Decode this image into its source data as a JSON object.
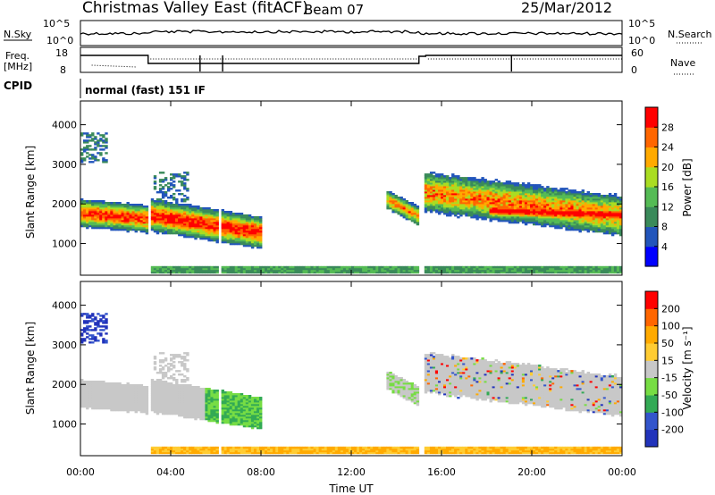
{
  "header": {
    "station": "Christmas Valley East (fitACF)",
    "beam": "Beam 07",
    "date": "25/Mar/2012"
  },
  "params": {
    "nsky_label": "N.Sky",
    "nsky_ticks": [
      "10^5",
      "10^0"
    ],
    "nsearch_label": "N.Search",
    "nsearch_ticks": [
      "10^5",
      "10^0"
    ],
    "freq_label_1": "Freq.",
    "freq_label_2": "[MHz]",
    "freq_ticks": [
      "18",
      "8"
    ],
    "nave_label": "Nave",
    "nave_ticks": [
      "60",
      "0"
    ],
    "cpid_label": "CPID",
    "cpid_value": "normal (fast) 151 IF"
  },
  "chart_data": [
    {
      "type": "heatmap",
      "name": "power",
      "ylabel": "Slant Range [km]",
      "yticks": [
        "4000",
        "3000",
        "2000",
        "1000"
      ],
      "ylim": [
        200,
        4600
      ],
      "colorbar_label": "Power [dB]",
      "colorbar_ticks": [
        "28",
        "24",
        "20",
        "16",
        "12",
        "8",
        "4"
      ],
      "colors": [
        "#0000ff",
        "#2255bb",
        "#3a8a5a",
        "#55bb55",
        "#aadd22",
        "#ffaa00",
        "#ff6600",
        "#ff0000"
      ]
    },
    {
      "type": "heatmap",
      "name": "velocity",
      "ylabel": "Slant Range [km]",
      "yticks": [
        "4000",
        "3000",
        "2000",
        "1000"
      ],
      "ylim": [
        200,
        4600
      ],
      "colorbar_label": "Velocity [m s⁻¹]",
      "colorbar_ticks": [
        "200",
        "100",
        "50",
        "15",
        "-15",
        "-50",
        "-100",
        "-200"
      ],
      "colors": [
        "#2233bb",
        "#3355cc",
        "#33aa55",
        "#77dd44",
        "#c8c8c8",
        "#ffcc33",
        "#ffaa00",
        "#ff6600",
        "#ff0000"
      ]
    }
  ],
  "time_axis": {
    "xlabel": "Time UT",
    "ticks": [
      "00:00",
      "04:00",
      "08:00",
      "12:00",
      "16:00",
      "20:00",
      "00:00"
    ]
  }
}
